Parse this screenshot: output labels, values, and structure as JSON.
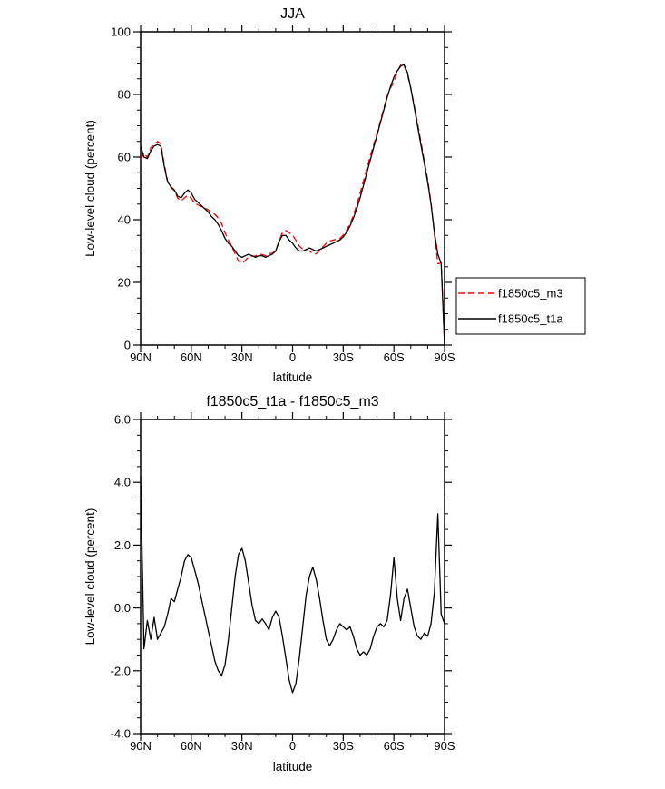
{
  "figure": {
    "background": "#ffffff",
    "line_color_primary": "#000000",
    "line_color_secondary": "#ff0000"
  },
  "chart_data": [
    {
      "type": "line",
      "title": "JJA",
      "xlabel": "latitude",
      "ylabel": "Low-level cloud (percent)",
      "xlim": [
        90,
        -90
      ],
      "ylim": [
        0,
        100
      ],
      "xticks": [
        90,
        60,
        30,
        0,
        -30,
        -60,
        -90
      ],
      "xtick_labels": [
        "90N",
        "60N",
        "30N",
        "0",
        "30S",
        "60S",
        "90S"
      ],
      "yticks": [
        0,
        20,
        40,
        60,
        80,
        100
      ],
      "ytick_labels": [
        "0",
        "20",
        "40",
        "60",
        "80",
        "100"
      ],
      "x_minor_step": 10,
      "y_minor_step": 5,
      "grid": false,
      "x": [
        90,
        88,
        86,
        84,
        82,
        80,
        78,
        76,
        74,
        72,
        70,
        68,
        66,
        64,
        62,
        60,
        58,
        56,
        54,
        52,
        50,
        48,
        46,
        44,
        42,
        40,
        38,
        36,
        34,
        32,
        30,
        28,
        26,
        24,
        22,
        20,
        18,
        16,
        14,
        12,
        10,
        8,
        6,
        4,
        2,
        0,
        -2,
        -4,
        -6,
        -8,
        -10,
        -12,
        -14,
        -16,
        -18,
        -20,
        -22,
        -24,
        -26,
        -28,
        -30,
        -32,
        -34,
        -36,
        -38,
        -40,
        -42,
        -44,
        -46,
        -48,
        -50,
        -52,
        -54,
        -56,
        -58,
        -60,
        -62,
        -64,
        -66,
        -68,
        -70,
        -72,
        -74,
        -76,
        -78,
        -80,
        -82,
        -84,
        -86,
        -88,
        -90
      ],
      "series": [
        {
          "name": "f1850c5_m3",
          "color": "#ff0000",
          "dash": "dashed",
          "values": [
            59.3,
            61.3,
            59.9,
            63,
            63.8,
            65,
            64.3,
            57.6,
            52.2,
            50.2,
            49.3,
            46.9,
            46,
            47,
            47.8,
            46.9,
            45.3,
            44.7,
            44.2,
            43.7,
            43.2,
            42.2,
            41.7,
            40.5,
            38.7,
            35.8,
            33.5,
            31.5,
            29,
            26.8,
            26.1,
            27,
            28.2,
            28.4,
            28.4,
            29,
            28.9,
            28.5,
            29.2,
            29.3,
            30.1,
            33.3,
            35.9,
            36.6,
            35.8,
            35.2,
            33.4,
            31.6,
            30.6,
            30.1,
            30,
            29.2,
            29.1,
            30.2,
            31.4,
            32.5,
            33.2,
            33.5,
            33.7,
            34,
            35.1,
            36.7,
            38.6,
            41.4,
            44.8,
            48.5,
            52.4,
            56.5,
            60.3,
            63.9,
            67.6,
            71.5,
            75.6,
            79.4,
            82.1,
            83.9,
            87.2,
            89.4,
            89.2,
            86.4,
            82,
            76.6,
            70.9,
            65,
            58.8,
            52.9,
            45.5,
            35.5,
            26,
            26.2,
            0.5
          ]
        },
        {
          "name": "f1850c5_t1a",
          "color": "#000000",
          "dash": "solid",
          "values": [
            63.5,
            60,
            59.5,
            62,
            63.5,
            64,
            63.5,
            57,
            52,
            50.5,
            49.5,
            47.5,
            47,
            48.5,
            49.5,
            48.5,
            46.5,
            45.5,
            44.5,
            43.5,
            42.5,
            41,
            40,
            38.5,
            36.5,
            34,
            32.5,
            31.5,
            30,
            28.5,
            28,
            28.5,
            29,
            28.5,
            28,
            28.5,
            28.5,
            28,
            28.5,
            29,
            30,
            33,
            35,
            35,
            33.5,
            32.5,
            31,
            30,
            30,
            30.5,
            31,
            30.5,
            30,
            30.5,
            31,
            31.5,
            32,
            32.5,
            33,
            33.5,
            34.5,
            36,
            38,
            40.5,
            43.5,
            47,
            51,
            55,
            59,
            63,
            67,
            71,
            75,
            79,
            82.5,
            85.5,
            87.5,
            89,
            89.5,
            87,
            82,
            76,
            70,
            64,
            58,
            52,
            45,
            36,
            29,
            26,
            0
          ]
        }
      ],
      "legend": {
        "position": "outside-right-bottom",
        "entries": [
          "f1850c5_m3",
          "f1850c5_t1a"
        ]
      }
    },
    {
      "type": "line",
      "title": "f1850c5_t1a - f1850c5_m3",
      "xlabel": "latitude",
      "ylabel": "Low-level cloud (percent)",
      "xlim": [
        90,
        -90
      ],
      "ylim": [
        -4,
        6
      ],
      "xticks": [
        90,
        60,
        30,
        0,
        -30,
        -60,
        -90
      ],
      "xtick_labels": [
        "90N",
        "60N",
        "30N",
        "0",
        "30S",
        "60S",
        "90S"
      ],
      "yticks": [
        -4,
        -2,
        0,
        2,
        4,
        6
      ],
      "ytick_labels": [
        "-4.0",
        "-2.0",
        "0.0",
        "2.0",
        "4.0",
        "6.0"
      ],
      "x_minor_step": 10,
      "y_minor_step": 0.5,
      "grid": false,
      "x": [
        90,
        88,
        86,
        84,
        82,
        80,
        78,
        76,
        74,
        72,
        70,
        68,
        66,
        64,
        62,
        60,
        58,
        56,
        54,
        52,
        50,
        48,
        46,
        44,
        42,
        40,
        38,
        36,
        34,
        32,
        30,
        28,
        26,
        24,
        22,
        20,
        18,
        16,
        14,
        12,
        10,
        8,
        6,
        4,
        2,
        0,
        -2,
        -4,
        -6,
        -8,
        -10,
        -12,
        -14,
        -16,
        -18,
        -20,
        -22,
        -24,
        -26,
        -28,
        -30,
        -32,
        -34,
        -36,
        -38,
        -40,
        -42,
        -44,
        -46,
        -48,
        -50,
        -52,
        -54,
        -56,
        -58,
        -60,
        -62,
        -64,
        -66,
        -68,
        -70,
        -72,
        -74,
        -76,
        -78,
        -80,
        -82,
        -84,
        -86,
        -88,
        -90
      ],
      "series": [
        {
          "name": "f1850c5_t1a - f1850c5_m3",
          "color": "#000000",
          "dash": "solid",
          "values": [
            4.2,
            -1.3,
            -0.4,
            -1,
            -0.3,
            -1,
            -0.8,
            -0.6,
            -0.2,
            0.3,
            0.2,
            0.6,
            1,
            1.5,
            1.7,
            1.6,
            1.2,
            0.8,
            0.3,
            -0.2,
            -0.7,
            -1.2,
            -1.7,
            -2,
            -2.15,
            -1.8,
            -1,
            0,
            1,
            1.7,
            1.9,
            1.5,
            0.8,
            0.1,
            -0.4,
            -0.5,
            -0.35,
            -0.5,
            -0.7,
            -0.3,
            -0.1,
            -0.3,
            -0.9,
            -1.6,
            -2.3,
            -2.7,
            -2.4,
            -1.6,
            -0.6,
            0.4,
            1,
            1.3,
            0.9,
            0.3,
            -0.4,
            -1,
            -1.2,
            -1,
            -0.7,
            -0.5,
            -0.6,
            -0.7,
            -0.6,
            -0.9,
            -1.3,
            -1.5,
            -1.4,
            -1.5,
            -1.3,
            -0.9,
            -0.6,
            -0.5,
            -0.6,
            -0.4,
            0.4,
            1.6,
            0.3,
            -0.4,
            0.3,
            0.6,
            0,
            -0.6,
            -0.9,
            -1,
            -0.8,
            -0.9,
            -0.5,
            0.5,
            3,
            -0.2,
            -0.5
          ]
        }
      ],
      "legend": null
    }
  ]
}
